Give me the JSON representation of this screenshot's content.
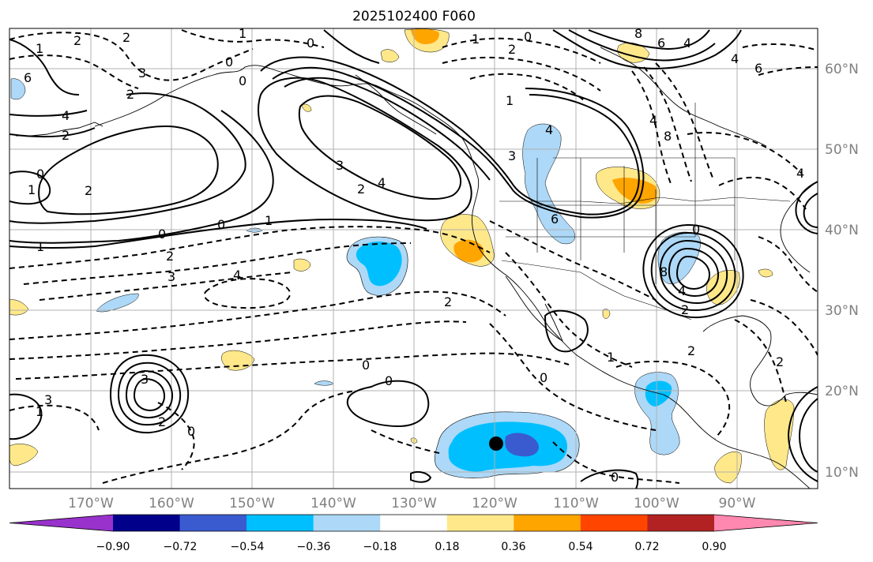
{
  "title": "2025102400 F060",
  "map": {
    "lat_labels": [
      "60°N",
      "50°N",
      "40°N",
      "30°N",
      "20°N",
      "10°N"
    ],
    "lon_labels": [
      "170°W",
      "160°W",
      "150°W",
      "140°W",
      "130°W",
      "120°W",
      "110°W",
      "100°W",
      "90°W"
    ]
  },
  "colorbar": {
    "tick_labels": [
      "−0.90",
      "−0.72",
      "−0.54",
      "−0.36",
      "−0.18",
      "0.18",
      "0.36",
      "0.54",
      "0.72",
      "0.90"
    ],
    "colors": [
      "#9932cc",
      "#00008b",
      "#3a5bd0",
      "#00bfff",
      "#add8f7",
      "#ffffff",
      "#ffe88a",
      "#ffa500",
      "#ff4500",
      "#b22222",
      "#ff88b0"
    ]
  },
  "contour_labels": {
    "l1": "1",
    "l2": "2",
    "l3": "3",
    "l4": "4",
    "l5": "0",
    "l6": "1",
    "l7": "2",
    "l8": "1",
    "l9": "0",
    "l10": "1",
    "l11": "2",
    "l12": "3",
    "l13": "4",
    "l14": "0",
    "l15": "1",
    "l16": "2",
    "l17": "3",
    "l18": "4",
    "l19": "2",
    "l20": "3",
    "l21": "0",
    "l22": "1",
    "l23": "0",
    "l24": "2",
    "l25": "1",
    "l26": "3",
    "l27": "4",
    "l28": "0",
    "l29": "2",
    "l30": "0",
    "l31": "1",
    "l32": "3",
    "l33": "2",
    "l34": "0",
    "l35": "3",
    "l36": "4",
    "l37": "2",
    "l38": "0",
    "l39": "2",
    "l40": "2",
    "l41": "0",
    "l42": "6",
    "l43": "8",
    "l44": "4",
    "l45": "6",
    "l46": "2",
    "l47": "4",
    "l48": "6",
    "l49": "8",
    "l50": "0",
    "l51": "8",
    "l52": "4",
    "l53": "2",
    "l54": "1",
    "l55": "2",
    "l56": "0",
    "l57": "0"
  },
  "marker": {
    "lat": 13.6,
    "lon": -120.0
  }
}
